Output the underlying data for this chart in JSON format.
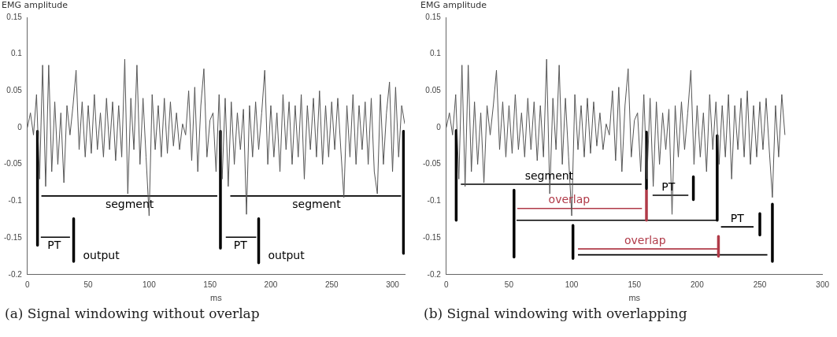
{
  "chart_data": [
    {
      "type": "line",
      "xlabel": "ms",
      "ylabel": "EMG amplitude",
      "xlim": [
        0,
        310
      ],
      "ylim": [
        -0.2,
        0.15
      ],
      "xticks": [
        0,
        50,
        100,
        150,
        200,
        250,
        300
      ],
      "yticks": [
        -0.2,
        -0.15,
        -0.1,
        -0.05,
        0,
        0.05,
        0.1,
        0.15
      ],
      "grid": false,
      "legend": false,
      "marker": "none",
      "series": [
        {
          "type": "line",
          "color": "#555555",
          "x": [
            0,
            2.5,
            5,
            7.5,
            10,
            12.5,
            15,
            17.5,
            20,
            22.5,
            25,
            27.5,
            30,
            32.5,
            35,
            37.5,
            40,
            42.5,
            45,
            47.5,
            50,
            52.5,
            55,
            57.5,
            60,
            62.5,
            65,
            67.5,
            70,
            72.5,
            75,
            77.5,
            80,
            82.5,
            85,
            87.5,
            90,
            92.5,
            95,
            97.5,
            100,
            102.5,
            105,
            107.5,
            110,
            112.5,
            115,
            117.5,
            120,
            122.5,
            125,
            127.5,
            130,
            132.5,
            135,
            137.5,
            140,
            142.5,
            145,
            147.5,
            150,
            152.5,
            155,
            157.5,
            160,
            162.5,
            165,
            167.5,
            170,
            172.5,
            175,
            177.5,
            180,
            182.5,
            185,
            187.5,
            190,
            192.5,
            195,
            197.5,
            200,
            202.5,
            205,
            207.5,
            210,
            212.5,
            215,
            217.5,
            220,
            222.5,
            225,
            227.5,
            230,
            232.5,
            235,
            237.5,
            240,
            242.5,
            245,
            247.5,
            250,
            252.5,
            255,
            257.5,
            260,
            262.5,
            265,
            267.5,
            270,
            272.5,
            275,
            277.5,
            280,
            282.5,
            285,
            287.5,
            290,
            292.5,
            295,
            297.5,
            300,
            302.5,
            305,
            307.5,
            310
          ],
          "values": [
            0,
            0.02,
            -0.01,
            0.045,
            -0.07,
            0.085,
            -0.08,
            0.085,
            -0.06,
            0.035,
            -0.05,
            0.02,
            -0.075,
            0.03,
            -0.01,
            0.03,
            0.078,
            -0.03,
            0.035,
            -0.04,
            0.03,
            -0.035,
            0.045,
            -0.03,
            0.02,
            -0.04,
            0.04,
            -0.03,
            0.035,
            -0.045,
            0.03,
            -0.04,
            0.093,
            -0.09,
            0.04,
            -0.03,
            0.085,
            -0.05,
            0.04,
            -0.04,
            -0.12,
            0.045,
            -0.03,
            0.03,
            -0.04,
            0.04,
            -0.035,
            0.035,
            -0.025,
            0.02,
            -0.03,
            0.005,
            -0.01,
            0.05,
            -0.045,
            0.055,
            -0.06,
            0.03,
            0.08,
            -0.04,
            0.01,
            0.02,
            -0.06,
            0.045,
            -0.07,
            0.04,
            -0.08,
            0.035,
            -0.05,
            0.02,
            -0.03,
            0.025,
            -0.118,
            0.03,
            -0.04,
            0.035,
            -0.03,
            0.02,
            0.078,
            -0.05,
            0.03,
            -0.04,
            0.02,
            -0.06,
            0.045,
            -0.03,
            0.035,
            -0.05,
            0.03,
            -0.04,
            0.045,
            -0.07,
            0.03,
            -0.03,
            0.04,
            -0.04,
            0.05,
            -0.05,
            0.03,
            -0.04,
            0.035,
            -0.03,
            0.04,
            -0.03,
            -0.095,
            0.03,
            -0.04,
            0.045,
            -0.05,
            0.03,
            -0.03,
            0.035,
            -0.05,
            0.04,
            -0.06,
            -0.09,
            0.045,
            -0.05,
            0.02,
            0.062,
            -0.06,
            0.055,
            -0.04,
            0.03,
            0.005
          ]
        },
        {
          "type": "line",
          "color": "#000000",
          "x": [
            8.3,
            8.3
          ],
          "values": [
            -0.005,
            -0.16
          ]
        },
        {
          "type": "line",
          "color": "#000000",
          "x": [
            158.6,
            158.6
          ],
          "values": [
            -0.005,
            -0.164
          ]
        },
        {
          "type": "line",
          "color": "#000000",
          "x": [
            309,
            309
          ],
          "values": [
            -0.005,
            -0.171
          ]
        },
        {
          "type": "line",
          "color": "#000000",
          "x": [
            38,
            38
          ],
          "values": [
            -0.124,
            -0.182
          ]
        },
        {
          "type": "line",
          "color": "#000000",
          "x": [
            190,
            190
          ],
          "values": [
            -0.124,
            -0.184
          ]
        },
        {
          "type": "line",
          "color": "#000000",
          "x": [
            11.5,
            156
          ],
          "values": [
            -0.093,
            -0.093
          ]
        },
        {
          "type": "line",
          "color": "#000000",
          "x": [
            166.7,
            307
          ],
          "values": [
            -0.093,
            -0.093
          ]
        },
        {
          "type": "line",
          "color": "#000000",
          "x": [
            11,
            35
          ],
          "values": [
            -0.149,
            -0.149
          ]
        },
        {
          "type": "line",
          "color": "#000000",
          "x": [
            163,
            188
          ],
          "values": [
            -0.149,
            -0.149
          ]
        }
      ],
      "annotations": [
        {
          "text": "segment",
          "x": 84,
          "y": -0.093
        },
        {
          "text": "segment",
          "x": 237.5,
          "y": -0.093
        },
        {
          "text": "PT",
          "x": 22,
          "y": -0.149
        },
        {
          "text": "PT",
          "x": 175,
          "y": -0.149
        },
        {
          "text": "output",
          "x": 38,
          "y": -0.175
        },
        {
          "text": "output",
          "x": 190,
          "y": -0.175
        },
        "(a) Signal windowing without overlap"
      ]
    },
    {
      "type": "line",
      "xlabel": "ms",
      "ylabel": "EMG amplitude",
      "xlim": [
        0,
        300
      ],
      "ylim": [
        -0.2,
        0.15
      ],
      "xticks": [
        0,
        50,
        100,
        150,
        200,
        250,
        300
      ],
      "yticks": [
        -0.2,
        -0.15,
        -0.1,
        -0.05,
        0,
        0.05,
        0.1,
        0.15
      ],
      "grid": false,
      "legend": false,
      "marker": "none",
      "series": [
        {
          "type": "line",
          "color": "#555555",
          "x": [
            0,
            2.5,
            5,
            7.5,
            10,
            12.5,
            15,
            17.5,
            20,
            22.5,
            25,
            27.5,
            30,
            32.5,
            35,
            37.5,
            40,
            42.5,
            45,
            47.5,
            50,
            52.5,
            55,
            57.5,
            60,
            62.5,
            65,
            67.5,
            70,
            72.5,
            75,
            77.5,
            80,
            82.5,
            85,
            87.5,
            90,
            92.5,
            95,
            97.5,
            100,
            102.5,
            105,
            107.5,
            110,
            112.5,
            115,
            117.5,
            120,
            122.5,
            125,
            127.5,
            130,
            132.5,
            135,
            137.5,
            140,
            142.5,
            145,
            147.5,
            150,
            152.5,
            155,
            157.5,
            160,
            162.5,
            165,
            167.5,
            170,
            172.5,
            175,
            177.5,
            180,
            182.5,
            185,
            187.5,
            190,
            192.5,
            195,
            197.5,
            200,
            202.5,
            205,
            207.5,
            210,
            212.5,
            215,
            217.5,
            220,
            222.5,
            225,
            227.5,
            230,
            232.5,
            235,
            237.5,
            240,
            242.5,
            245,
            247.5,
            250,
            252.5,
            255,
            257.5,
            260,
            262.5,
            265,
            267.5,
            270
          ],
          "values": [
            0,
            0.02,
            -0.01,
            0.045,
            -0.07,
            0.085,
            -0.08,
            0.085,
            -0.06,
            0.035,
            -0.05,
            0.02,
            -0.075,
            0.03,
            -0.01,
            0.03,
            0.078,
            -0.03,
            0.035,
            -0.04,
            0.03,
            -0.035,
            0.045,
            -0.03,
            0.02,
            -0.04,
            0.04,
            -0.03,
            0.035,
            -0.045,
            0.03,
            -0.04,
            0.093,
            -0.09,
            0.04,
            -0.03,
            0.085,
            -0.05,
            0.04,
            -0.04,
            -0.12,
            0.045,
            -0.03,
            0.03,
            -0.04,
            0.04,
            -0.035,
            0.035,
            -0.025,
            0.02,
            -0.03,
            0.005,
            -0.01,
            0.05,
            -0.045,
            0.055,
            -0.06,
            0.03,
            0.08,
            -0.04,
            0.01,
            0.02,
            -0.06,
            0.045,
            -0.07,
            0.04,
            -0.08,
            0.035,
            -0.05,
            0.02,
            -0.03,
            0.025,
            -0.118,
            0.03,
            -0.04,
            0.035,
            -0.03,
            0.02,
            0.078,
            -0.05,
            0.03,
            -0.04,
            0.02,
            -0.06,
            0.045,
            -0.03,
            0.035,
            -0.05,
            0.03,
            -0.04,
            0.045,
            -0.07,
            0.03,
            -0.03,
            0.04,
            -0.04,
            0.05,
            -0.05,
            0.03,
            -0.04,
            0.035,
            -0.03,
            0.04,
            -0.03,
            -0.095,
            0.03,
            -0.04,
            0.045,
            -0.01
          ]
        },
        {
          "type": "line",
          "color": "#000000",
          "x": [
            7.9,
            7.9
          ],
          "values": [
            -0.004,
            -0.126
          ]
        },
        {
          "type": "line",
          "color": "#000000",
          "x": [
            159.6,
            159.6
          ],
          "values": [
            -0.006,
            -0.083
          ]
        },
        {
          "type": "line",
          "color": "#b03a48",
          "x": [
            159.6,
            159.6
          ],
          "values": [
            -0.085,
            -0.126
          ]
        },
        {
          "type": "line",
          "color": "#000000",
          "x": [
            54,
            54
          ],
          "values": [
            -0.085,
            -0.176
          ]
        },
        {
          "type": "line",
          "color": "#000000",
          "x": [
            216,
            216
          ],
          "values": [
            -0.011,
            -0.126
          ]
        },
        {
          "type": "line",
          "color": "#000000",
          "x": [
            197,
            197
          ],
          "values": [
            -0.067,
            -0.098
          ]
        },
        {
          "type": "line",
          "color": "#000000",
          "x": [
            250,
            250
          ],
          "values": [
            -0.117,
            -0.146
          ]
        },
        {
          "type": "line",
          "color": "#000000",
          "x": [
            101,
            101
          ],
          "values": [
            -0.133,
            -0.178
          ]
        },
        {
          "type": "line",
          "color": "#b03a48",
          "x": [
            217,
            217
          ],
          "values": [
            -0.148,
            -0.175
          ]
        },
        {
          "type": "line",
          "color": "#000000",
          "x": [
            260,
            260
          ],
          "values": [
            -0.104,
            -0.182
          ]
        },
        {
          "type": "line",
          "color": "#000000",
          "x": [
            11.6,
            155.7
          ],
          "values": [
            -0.077,
            -0.077
          ]
        },
        {
          "type": "line",
          "color": "#b03a48",
          "x": [
            56.6,
            156
          ],
          "values": [
            -0.11,
            -0.11
          ]
        },
        {
          "type": "line",
          "color": "#000000",
          "x": [
            56,
            216.7
          ],
          "values": [
            -0.126,
            -0.126
          ]
        },
        {
          "type": "line",
          "color": "#000000",
          "x": [
            164.5,
            193
          ],
          "values": [
            -0.092,
            -0.092
          ]
        },
        {
          "type": "line",
          "color": "#000000",
          "x": [
            219,
            245
          ],
          "values": [
            -0.135,
            -0.135
          ]
        },
        {
          "type": "line",
          "color": "#b03a48",
          "x": [
            105,
            216.7
          ],
          "values": [
            -0.165,
            -0.165
          ]
        },
        {
          "type": "line",
          "color": "#000000",
          "x": [
            105,
            256
          ],
          "values": [
            -0.173,
            -0.173
          ]
        }
      ],
      "annotations": [
        {
          "text": "segment",
          "x": 82,
          "y": -0.077
        },
        {
          "text": "overlap",
          "x": 98,
          "y": -0.11
        },
        {
          "text": "overlap",
          "x": 158.5,
          "y": -0.165
        },
        {
          "text": "PT",
          "x": 177,
          "y": -0.092
        },
        {
          "text": "PT",
          "x": 232,
          "y": -0.135
        },
        "(b) Signal windowing with overlapping"
      ]
    }
  ]
}
